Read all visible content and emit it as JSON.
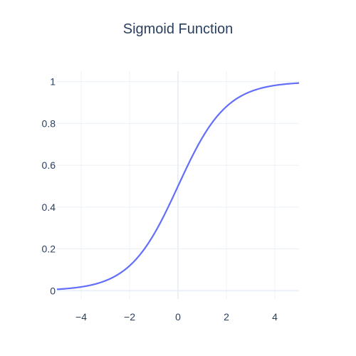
{
  "chart_data": {
    "type": "line",
    "title": "Sigmoid Function",
    "xlabel": "",
    "ylabel": "",
    "xlim": [
      -5,
      5
    ],
    "ylim": [
      -0.04,
      1.05
    ],
    "grid": true,
    "legend": "none",
    "xticks": [
      -4,
      -2,
      0,
      2,
      4
    ],
    "xtick_labels": [
      "−4",
      "−2",
      "0",
      "2",
      "4"
    ],
    "yticks": [
      0,
      0.2,
      0.4,
      0.6,
      0.8,
      1
    ],
    "ytick_labels": [
      "0",
      "0.2",
      "0.4",
      "0.6",
      "0.8",
      "1"
    ],
    "series": [
      {
        "color": "#636efa",
        "function": "sigmoid",
        "x": [
          -5,
          -4.5,
          -4,
          -3.5,
          -3,
          -2.5,
          -2,
          -1.5,
          -1,
          -0.5,
          0,
          0.5,
          1,
          1.5,
          2,
          2.5,
          3,
          3.5,
          4,
          4.5,
          5
        ],
        "y": [
          0.0067,
          0.011,
          0.018,
          0.0293,
          0.0474,
          0.0759,
          0.1192,
          0.1824,
          0.2689,
          0.3775,
          0.5,
          0.6225,
          0.7311,
          0.8176,
          0.8808,
          0.9241,
          0.9526,
          0.9707,
          0.982,
          0.989,
          0.9933
        ]
      }
    ]
  },
  "colors": {
    "line": "#636efa",
    "grid": "#ebf0f8",
    "zeroline": "#ebf0f8",
    "text": "#2a3f5f"
  }
}
